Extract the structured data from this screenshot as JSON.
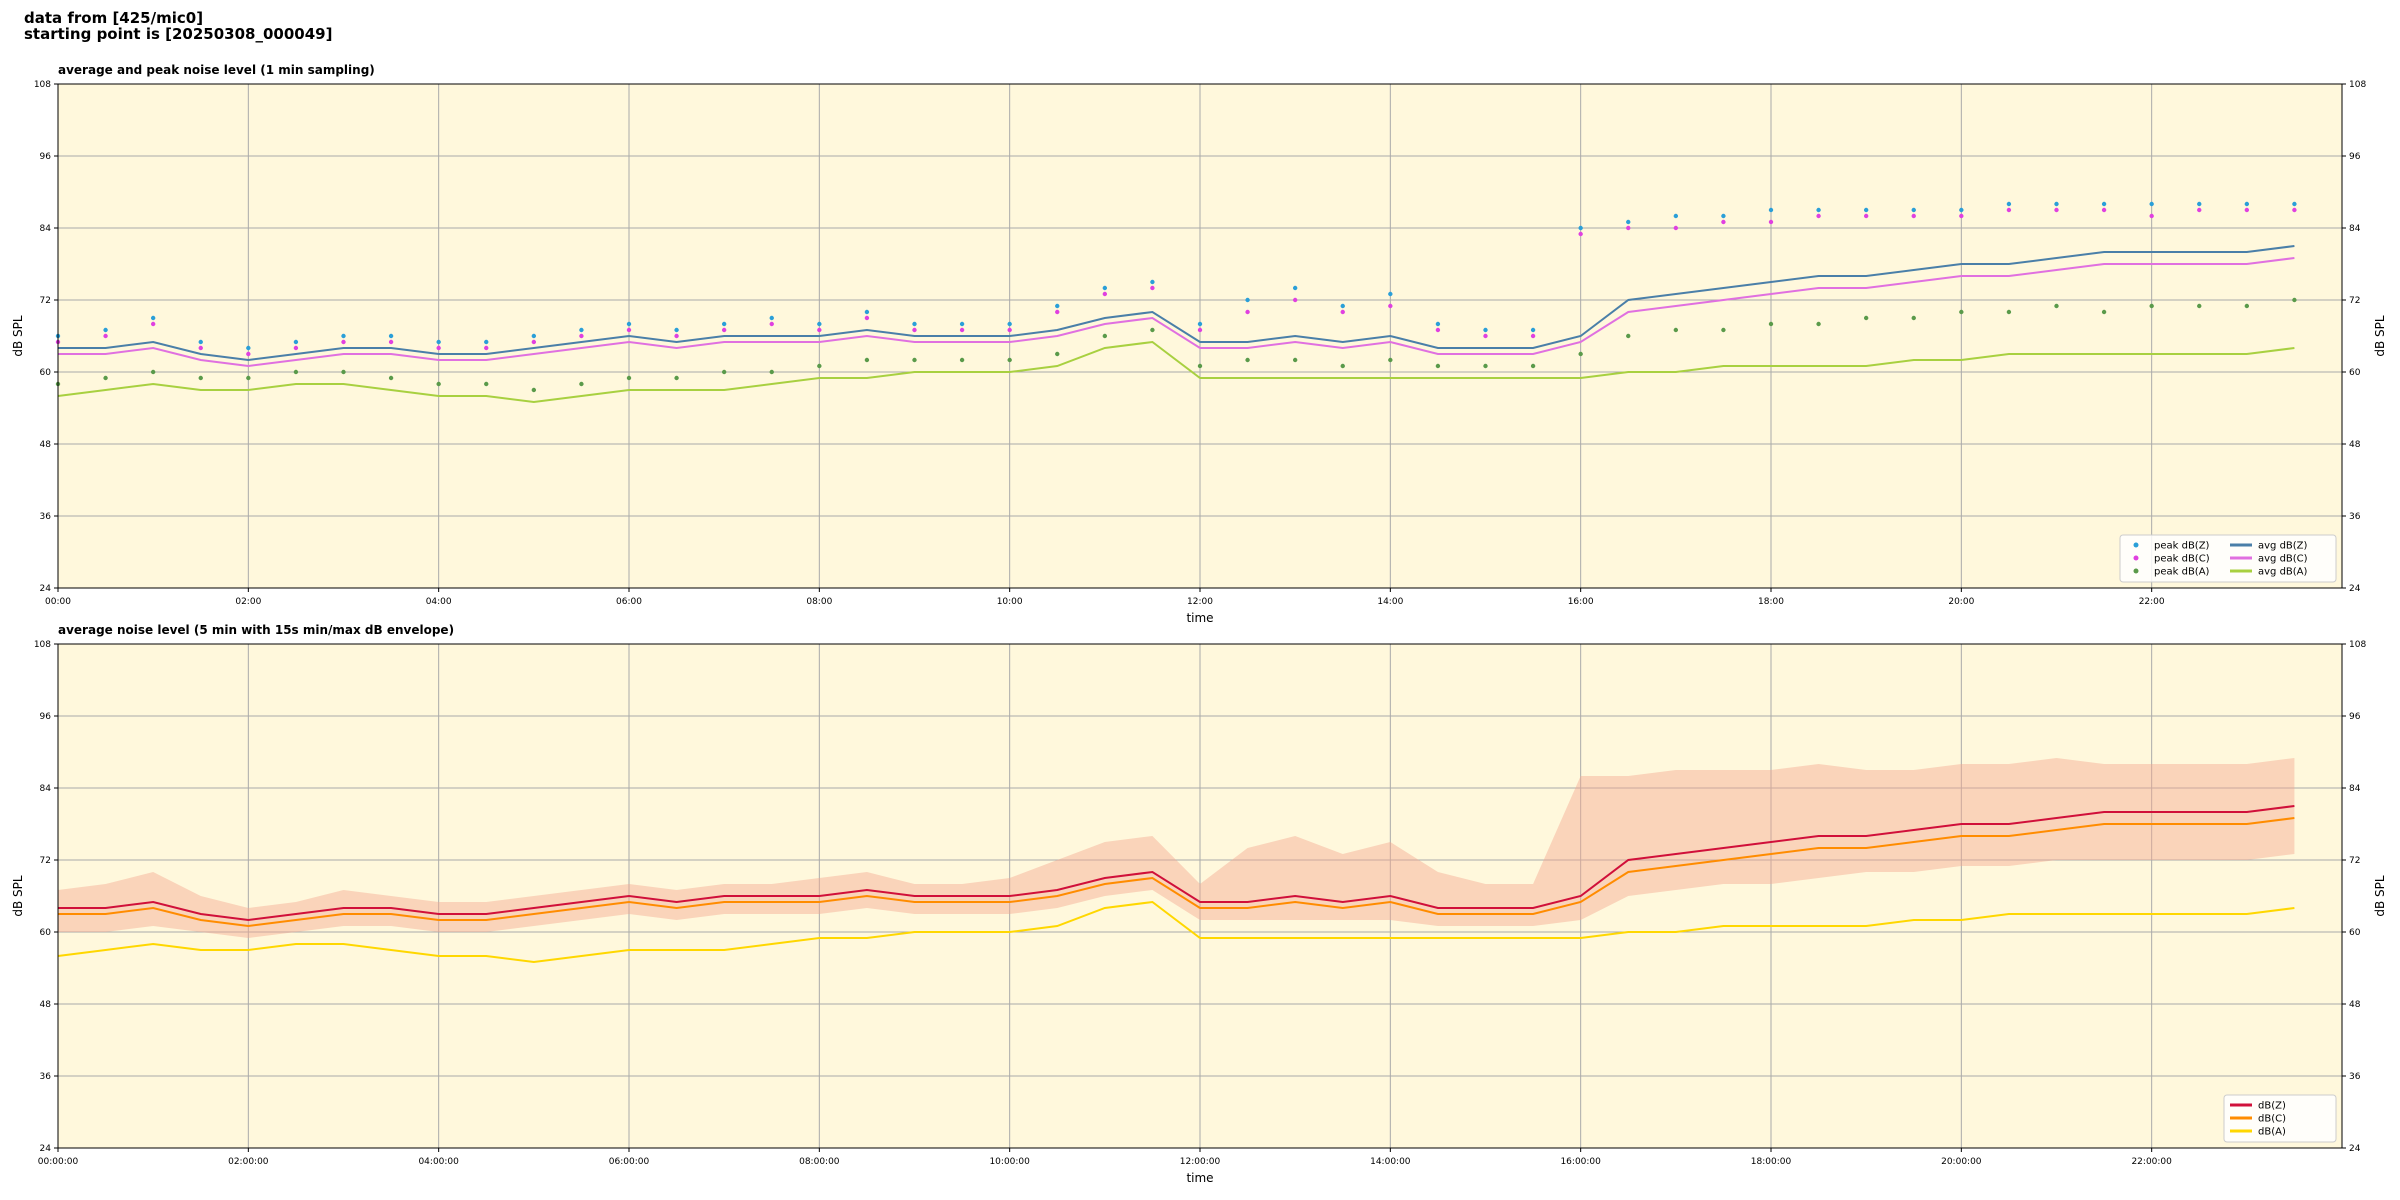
{
  "header_lines": [
    "data from [425/mic0]",
    "starting point is [20250308_000049]"
  ],
  "chart_data": [
    {
      "type": "line",
      "title": "average and peak noise level (1 min sampling)",
      "xlabel": "time",
      "ylabel": "dB SPL",
      "y2label": "dB SPL",
      "x": [
        0,
        0.5,
        1,
        1.5,
        2,
        2.5,
        3,
        3.5,
        4,
        4.5,
        5,
        5.5,
        6,
        6.5,
        7,
        7.5,
        8,
        8.5,
        9,
        9.5,
        10,
        10.5,
        11,
        11.5,
        12,
        12.5,
        13,
        13.5,
        14,
        14.5,
        15,
        15.5,
        16,
        16.5,
        17,
        17.5,
        18,
        18.5,
        19,
        19.5,
        20,
        20.5,
        21,
        21.5,
        22,
        22.5,
        23,
        23.5
      ],
      "xlim": [
        0,
        24
      ],
      "xticks": [
        {
          "value": 0,
          "label": "00:00"
        },
        {
          "value": 2,
          "label": "02:00"
        },
        {
          "value": 4,
          "label": "04:00"
        },
        {
          "value": 6,
          "label": "06:00"
        },
        {
          "value": 8,
          "label": "08:00"
        },
        {
          "value": 10,
          "label": "10:00"
        },
        {
          "value": 12,
          "label": "12:00"
        },
        {
          "value": 14,
          "label": "14:00"
        },
        {
          "value": 16,
          "label": "16:00"
        },
        {
          "value": 18,
          "label": "18:00"
        },
        {
          "value": 20,
          "label": "20:00"
        },
        {
          "value": 22,
          "label": "22:00"
        }
      ],
      "ylim": [
        24,
        108
      ],
      "yticks": [
        24,
        36,
        48,
        60,
        72,
        84,
        96,
        108
      ],
      "y2lim": [
        24,
        108
      ],
      "y2ticks": [
        24,
        36,
        48,
        60,
        72,
        84,
        96,
        108
      ],
      "grid": true,
      "background": "#fff8dc",
      "legend": {
        "loc": "lower right",
        "ncol": 2
      },
      "series": [
        {
          "name": "peak dB(Z)",
          "style": "scatter",
          "color": "#2a9fd8",
          "values": [
            66,
            67,
            69,
            65,
            64,
            65,
            66,
            66,
            65,
            65,
            66,
            67,
            68,
            67,
            68,
            69,
            68,
            70,
            68,
            68,
            68,
            71,
            74,
            75,
            68,
            72,
            74,
            71,
            73,
            68,
            67,
            67,
            84,
            85,
            86,
            86,
            87,
            87,
            87,
            87,
            87,
            88,
            88,
            88,
            88,
            88,
            88,
            88
          ]
        },
        {
          "name": "peak dB(C)",
          "style": "scatter",
          "color": "#e040e0",
          "values": [
            65,
            66,
            68,
            64,
            63,
            64,
            65,
            65,
            64,
            64,
            65,
            66,
            67,
            66,
            67,
            68,
            67,
            69,
            67,
            67,
            67,
            70,
            73,
            74,
            67,
            70,
            72,
            70,
            71,
            67,
            66,
            66,
            83,
            84,
            84,
            85,
            85,
            86,
            86,
            86,
            86,
            87,
            87,
            87,
            86,
            87,
            87,
            87
          ]
        },
        {
          "name": "peak dB(A)",
          "style": "scatter",
          "color": "#5a9a4a",
          "values": [
            58,
            59,
            60,
            59,
            59,
            60,
            60,
            59,
            58,
            58,
            57,
            58,
            59,
            59,
            60,
            60,
            61,
            62,
            62,
            62,
            62,
            63,
            66,
            67,
            61,
            62,
            62,
            61,
            62,
            61,
            61,
            61,
            63,
            66,
            67,
            67,
            68,
            68,
            69,
            69,
            70,
            70,
            71,
            70,
            71,
            71,
            71,
            72
          ]
        },
        {
          "name": "avg dB(Z)",
          "style": "line",
          "color": "#4a7fa8",
          "values": [
            64,
            64,
            65,
            63,
            62,
            63,
            64,
            64,
            63,
            63,
            64,
            65,
            66,
            65,
            66,
            66,
            66,
            67,
            66,
            66,
            66,
            67,
            69,
            70,
            65,
            65,
            66,
            65,
            66,
            64,
            64,
            64,
            66,
            72,
            73,
            74,
            75,
            76,
            76,
            77,
            78,
            78,
            79,
            80,
            80,
            80,
            80,
            81
          ]
        },
        {
          "name": "avg dB(C)",
          "style": "line",
          "color": "#e070e0",
          "values": [
            63,
            63,
            64,
            62,
            61,
            62,
            63,
            63,
            62,
            62,
            63,
            64,
            65,
            64,
            65,
            65,
            65,
            66,
            65,
            65,
            65,
            66,
            68,
            69,
            64,
            64,
            65,
            64,
            65,
            63,
            63,
            63,
            65,
            70,
            71,
            72,
            73,
            74,
            74,
            75,
            76,
            76,
            77,
            78,
            78,
            78,
            78,
            79
          ]
        },
        {
          "name": "avg dB(A)",
          "style": "line",
          "color": "#a8d040",
          "values": [
            56,
            57,
            58,
            57,
            57,
            58,
            58,
            57,
            56,
            56,
            55,
            56,
            57,
            57,
            57,
            58,
            59,
            59,
            60,
            60,
            60,
            61,
            64,
            65,
            59,
            59,
            59,
            59,
            59,
            59,
            59,
            59,
            59,
            60,
            60,
            61,
            61,
            61,
            61,
            62,
            62,
            63,
            63,
            63,
            63,
            63,
            63,
            64
          ]
        }
      ]
    },
    {
      "type": "line",
      "title": "average noise level (5 min with 15s min/max dB envelope)",
      "xlabel": "time",
      "ylabel": "dB SPL",
      "y2label": "dB SPL",
      "x": [
        0,
        0.5,
        1,
        1.5,
        2,
        2.5,
        3,
        3.5,
        4,
        4.5,
        5,
        5.5,
        6,
        6.5,
        7,
        7.5,
        8,
        8.5,
        9,
        9.5,
        10,
        10.5,
        11,
        11.5,
        12,
        12.5,
        13,
        13.5,
        14,
        14.5,
        15,
        15.5,
        16,
        16.5,
        17,
        17.5,
        18,
        18.5,
        19,
        19.5,
        20,
        20.5,
        21,
        21.5,
        22,
        22.5,
        23,
        23.5
      ],
      "xlim": [
        0,
        24
      ],
      "xticks": [
        {
          "value": 0,
          "label": "00:00:00"
        },
        {
          "value": 2,
          "label": "02:00:00"
        },
        {
          "value": 4,
          "label": "04:00:00"
        },
        {
          "value": 6,
          "label": "06:00:00"
        },
        {
          "value": 8,
          "label": "08:00:00"
        },
        {
          "value": 10,
          "label": "10:00:00"
        },
        {
          "value": 12,
          "label": "12:00:00"
        },
        {
          "value": 14,
          "label": "14:00:00"
        },
        {
          "value": 16,
          "label": "16:00:00"
        },
        {
          "value": 18,
          "label": "18:00:00"
        },
        {
          "value": 20,
          "label": "20:00:00"
        },
        {
          "value": 22,
          "label": "22:00:00"
        }
      ],
      "ylim": [
        24,
        108
      ],
      "yticks": [
        24,
        36,
        48,
        60,
        72,
        84,
        96,
        108
      ],
      "y2lim": [
        24,
        108
      ],
      "y2ticks": [
        24,
        36,
        48,
        60,
        72,
        84,
        96,
        108
      ],
      "grid": true,
      "background": "#fff8dc",
      "legend": {
        "loc": "lower right",
        "ncol": 1
      },
      "envelope": {
        "color": "#f4a890",
        "upper": [
          67,
          68,
          70,
          66,
          64,
          65,
          67,
          66,
          65,
          65,
          66,
          67,
          68,
          67,
          68,
          68,
          69,
          70,
          68,
          68,
          69,
          72,
          75,
          76,
          68,
          74,
          76,
          73,
          75,
          70,
          68,
          68,
          86,
          86,
          87,
          87,
          87,
          88,
          87,
          87,
          88,
          88,
          89,
          88,
          88,
          88,
          88,
          89
        ],
        "lower": [
          60,
          60,
          61,
          60,
          59,
          60,
          61,
          61,
          60,
          60,
          61,
          62,
          63,
          62,
          63,
          63,
          63,
          64,
          63,
          63,
          63,
          64,
          66,
          67,
          62,
          62,
          62,
          62,
          62,
          61,
          61,
          61,
          62,
          66,
          67,
          68,
          68,
          69,
          70,
          70,
          71,
          71,
          72,
          72,
          72,
          72,
          72,
          73
        ]
      },
      "series": [
        {
          "name": "dB(Z)",
          "style": "line",
          "color": "#d0103a",
          "values": [
            64,
            64,
            65,
            63,
            62,
            63,
            64,
            64,
            63,
            63,
            64,
            65,
            66,
            65,
            66,
            66,
            66,
            67,
            66,
            66,
            66,
            67,
            69,
            70,
            65,
            65,
            66,
            65,
            66,
            64,
            64,
            64,
            66,
            72,
            73,
            74,
            75,
            76,
            76,
            77,
            78,
            78,
            79,
            80,
            80,
            80,
            80,
            81
          ]
        },
        {
          "name": "dB(C)",
          "style": "line",
          "color": "#ff8c00",
          "values": [
            63,
            63,
            64,
            62,
            61,
            62,
            63,
            63,
            62,
            62,
            63,
            64,
            65,
            64,
            65,
            65,
            65,
            66,
            65,
            65,
            65,
            66,
            68,
            69,
            64,
            64,
            65,
            64,
            65,
            63,
            63,
            63,
            65,
            70,
            71,
            72,
            73,
            74,
            74,
            75,
            76,
            76,
            77,
            78,
            78,
            78,
            78,
            79
          ]
        },
        {
          "name": "dB(A)",
          "style": "line",
          "color": "#ffd700",
          "values": [
            56,
            57,
            58,
            57,
            57,
            58,
            58,
            57,
            56,
            56,
            55,
            56,
            57,
            57,
            57,
            58,
            59,
            59,
            60,
            60,
            60,
            61,
            64,
            65,
            59,
            59,
            59,
            59,
            59,
            59,
            59,
            59,
            59,
            60,
            60,
            61,
            61,
            61,
            61,
            62,
            62,
            63,
            63,
            63,
            63,
            63,
            63,
            64
          ]
        }
      ]
    }
  ]
}
